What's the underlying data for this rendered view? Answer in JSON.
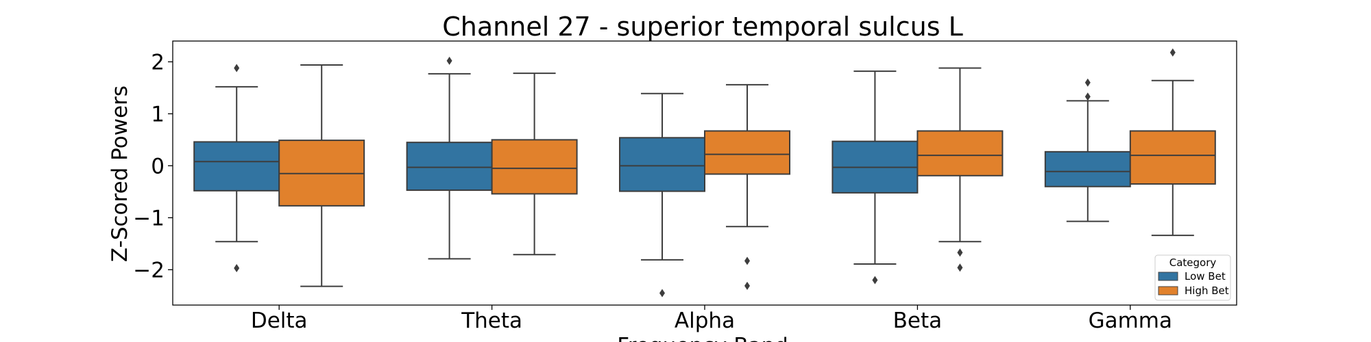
{
  "chart_data": {
    "type": "box",
    "title": "Channel 27 - superior temporal sulcus L",
    "xlabel": "Frequency Band",
    "ylabel": "Z-Scored Powers",
    "categories": [
      "Delta",
      "Theta",
      "Alpha",
      "Beta",
      "Gamma"
    ],
    "ylim": [
      -2.68,
      2.4
    ],
    "yticks": [
      {
        "value": 2,
        "label": "2"
      },
      {
        "value": 1,
        "label": "1"
      },
      {
        "value": 0,
        "label": "0"
      },
      {
        "value": -1,
        "label": "−1"
      },
      {
        "value": -2,
        "label": "−2"
      }
    ],
    "grid": false,
    "legend": {
      "title": "Category",
      "position": "bottom-right"
    },
    "series": [
      {
        "name": "Low Bet",
        "color": "#3274a1",
        "boxes": [
          {
            "whisker_low": -1.46,
            "q1": -0.48,
            "median": 0.08,
            "q3": 0.46,
            "whisker_high": 1.52,
            "outliers": [
              1.88,
              -1.97
            ]
          },
          {
            "whisker_low": -1.79,
            "q1": -0.47,
            "median": -0.03,
            "q3": 0.45,
            "whisker_high": 1.77,
            "outliers": [
              2.02
            ]
          },
          {
            "whisker_low": -1.81,
            "q1": -0.49,
            "median": 0.0,
            "q3": 0.54,
            "whisker_high": 1.39,
            "outliers": [
              -2.45
            ]
          },
          {
            "whisker_low": -1.89,
            "q1": -0.52,
            "median": -0.03,
            "q3": 0.47,
            "whisker_high": 1.82,
            "outliers": [
              -2.2
            ]
          },
          {
            "whisker_low": -1.07,
            "q1": -0.4,
            "median": -0.11,
            "q3": 0.27,
            "whisker_high": 1.25,
            "outliers": [
              1.6,
              1.33
            ]
          }
        ]
      },
      {
        "name": "High Bet",
        "color": "#e1812c",
        "boxes": [
          {
            "whisker_low": -2.32,
            "q1": -0.77,
            "median": -0.15,
            "q3": 0.49,
            "whisker_high": 1.94,
            "outliers": []
          },
          {
            "whisker_low": -1.71,
            "q1": -0.54,
            "median": -0.05,
            "q3": 0.5,
            "whisker_high": 1.78,
            "outliers": []
          },
          {
            "whisker_low": -1.17,
            "q1": -0.16,
            "median": 0.22,
            "q3": 0.67,
            "whisker_high": 1.56,
            "outliers": [
              -1.83,
              -2.31
            ]
          },
          {
            "whisker_low": -1.46,
            "q1": -0.19,
            "median": 0.2,
            "q3": 0.67,
            "whisker_high": 1.88,
            "outliers": [
              -1.67,
              -1.96
            ]
          },
          {
            "whisker_low": -1.34,
            "q1": -0.35,
            "median": 0.2,
            "q3": 0.67,
            "whisker_high": 1.64,
            "outliers": [
              2.18
            ]
          }
        ]
      }
    ]
  }
}
